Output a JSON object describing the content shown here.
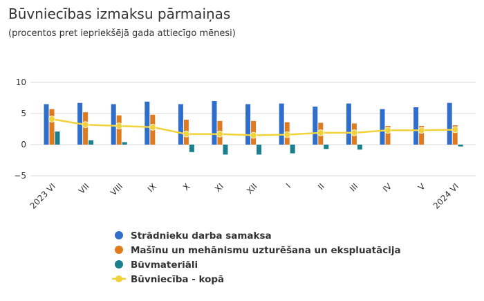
{
  "chart_data": {
    "type": "bar",
    "title": "Būvniecības izmaksu pārmaiņas",
    "subtitle": "(procentos pret iepriekšējā gada attiecīgo mēnesi)",
    "categories": [
      "2023 VI",
      "VII",
      "VIII",
      "IX",
      "X",
      "XI",
      "XII",
      "I",
      "II",
      "III",
      "IV",
      "V",
      "2024 VI"
    ],
    "ylim": [
      -5,
      10
    ],
    "yticks": [
      -5,
      0,
      5,
      10
    ],
    "ytick_labels": [
      "−5",
      "0",
      "5",
      "10"
    ],
    "grid": true,
    "legend_position": "bottom",
    "series": [
      {
        "name": "Strādnieku darba samaksa",
        "kind": "bar",
        "color": "#2f6fcb",
        "values": [
          6.5,
          6.7,
          6.5,
          6.9,
          6.5,
          7.0,
          6.5,
          6.6,
          6.1,
          6.6,
          5.7,
          6.0,
          6.7
        ]
      },
      {
        "name": "Mašīnu un mehānismu uzturēšana un ekspluatācija",
        "kind": "bar",
        "color": "#e07a1f",
        "values": [
          5.7,
          5.2,
          4.7,
          4.8,
          4.0,
          3.8,
          3.8,
          3.6,
          3.5,
          3.4,
          3.0,
          3.0,
          3.1
        ]
      },
      {
        "name": "Būvmateriāli",
        "kind": "bar",
        "color": "#1b7f8e",
        "values": [
          2.1,
          0.7,
          0.4,
          0.0,
          -1.2,
          -1.6,
          -1.6,
          -1.4,
          -0.7,
          -0.8,
          0.0,
          0.0,
          -0.3
        ]
      },
      {
        "name": "Būvniecība - kopā",
        "kind": "line",
        "color": "#f2d23a",
        "values": [
          4.1,
          3.2,
          3.0,
          2.8,
          1.7,
          1.7,
          1.5,
          1.6,
          1.9,
          1.9,
          2.3,
          2.3,
          2.4
        ]
      }
    ]
  }
}
